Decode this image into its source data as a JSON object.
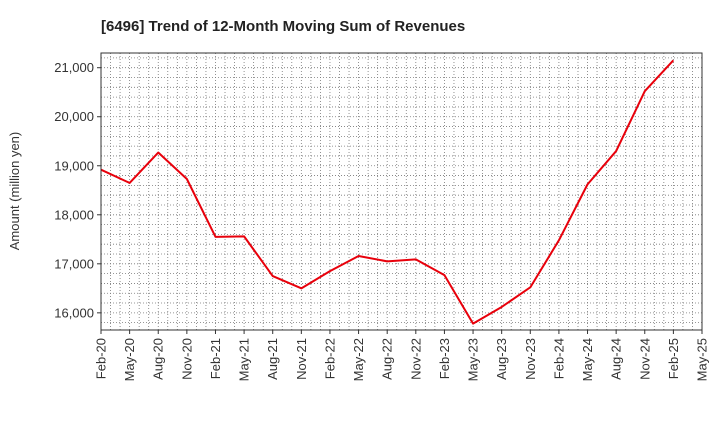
{
  "chart_data": {
    "type": "line",
    "title": "[6496]  Trend of 12-Month Moving Sum of Revenues",
    "ylabel": "Amount (million yen)",
    "xlabel": "",
    "ylim": [
      15650,
      21300
    ],
    "yticks": [
      16000,
      17000,
      18000,
      19000,
      20000,
      21000
    ],
    "ytick_labels": [
      "16,000",
      "17,000",
      "18,000",
      "19,000",
      "20,000",
      "21,000"
    ],
    "xtick_labels": [
      "Feb-20",
      "May-20",
      "Aug-20",
      "Nov-20",
      "Feb-21",
      "May-21",
      "Aug-21",
      "Nov-21",
      "Feb-22",
      "May-22",
      "Aug-22",
      "Nov-22",
      "Feb-23",
      "May-23",
      "Aug-23",
      "Nov-23",
      "Feb-24",
      "May-24",
      "Aug-24",
      "Nov-24",
      "Feb-25",
      "May-25"
    ],
    "grid": true,
    "series": [
      {
        "color": "#e8000b",
        "values": [
          18920,
          18650,
          19270,
          18730,
          17550,
          17560,
          16750,
          16500,
          16850,
          17160,
          17050,
          17090,
          16770,
          15780,
          16120,
          16520,
          17480,
          18620,
          19300,
          20520,
          21150
        ]
      }
    ]
  }
}
